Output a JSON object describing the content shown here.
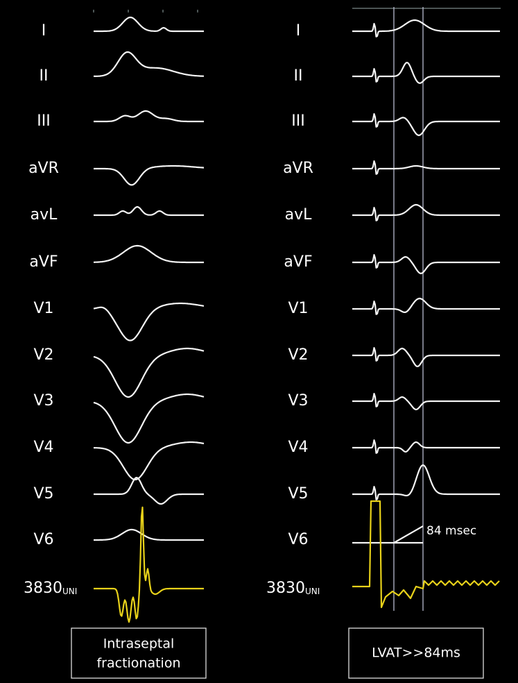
{
  "panels": [
    {
      "leads": [
        "I",
        "II",
        "III",
        "aVR",
        "avL",
        "aVF",
        "V1",
        "V2",
        "V3",
        "V4",
        "V5",
        "V6"
      ],
      "channel": {
        "name": "3830",
        "sub": "UNI"
      },
      "caption": [
        "Intraseptal",
        "fractionation"
      ]
    },
    {
      "leads": [
        "I",
        "II",
        "III",
        "aVR",
        "avL",
        "aVF",
        "V1",
        "V2",
        "V3",
        "V4",
        "V5",
        "V6"
      ],
      "channel": {
        "name": "3830",
        "sub": "UNI"
      },
      "annotation": "84 msec",
      "caption": [
        "LVAT>>84ms"
      ]
    }
  ]
}
